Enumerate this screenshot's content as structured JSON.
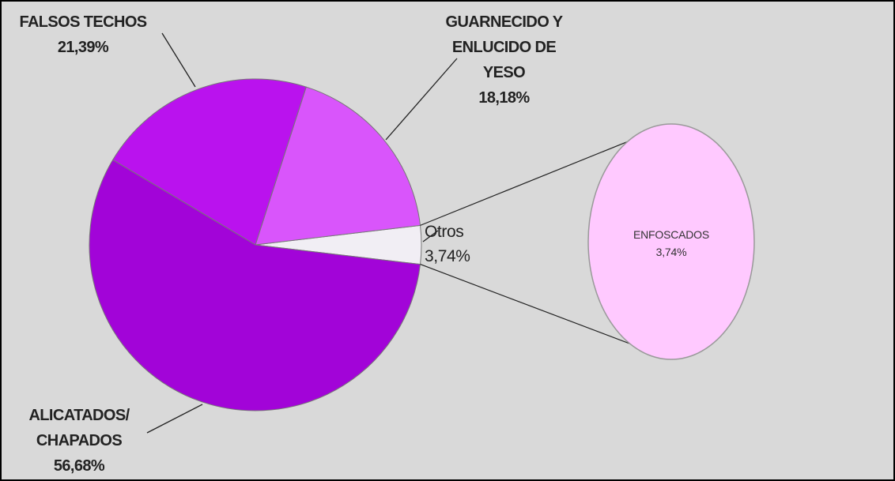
{
  "chart_data": {
    "type": "pie",
    "categories": [
      "ALICATADOS/ CHAPADOS",
      "FALSOS TECHOS",
      "GUARNECIDO Y ENLUCIDO DE YESO",
      "Otros"
    ],
    "values": [
      56.68,
      21.39,
      18.18,
      3.74
    ],
    "value_labels": [
      "56,68%",
      "21,39%",
      "18,18%",
      "3,74%"
    ],
    "colors": [
      "#a204d8",
      "#ba12ee",
      "#d955fb",
      "#f1eef4"
    ],
    "secondary": {
      "type": "pie",
      "categories": [
        "ENFOSCADOS"
      ],
      "values": [
        3.74
      ],
      "value_labels": [
        "3,74%"
      ],
      "colors": [
        "#ffc9ff"
      ]
    }
  }
}
